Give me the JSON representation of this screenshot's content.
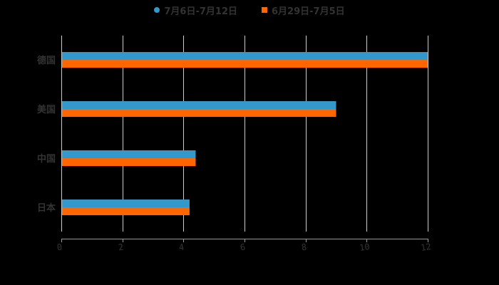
{
  "legend": {
    "series1": {
      "label": "7月6日-7月12日",
      "color": "#3399CC",
      "marker": "circle"
    },
    "series2": {
      "label": "6月29日-7月5日",
      "color": "#FF6600",
      "marker": "square"
    }
  },
  "chart_data": {
    "type": "bar",
    "orientation": "horizontal",
    "title": "",
    "xlabel": "",
    "ylabel": "",
    "categories": [
      "德国",
      "美国",
      "中国",
      "日本"
    ],
    "series": [
      {
        "name": "7月6日-7月12日",
        "color": "#3399CC",
        "values": [
          12,
          9,
          4.4,
          4.2
        ]
      },
      {
        "name": "6月29日-7月5日",
        "color": "#FF6600",
        "values": [
          12,
          9,
          4.4,
          4.2
        ]
      }
    ],
    "xlim": [
      0,
      12
    ],
    "xticks": [
      "0",
      "2",
      "4",
      "6",
      "8",
      "10",
      "12"
    ],
    "grid": "vertical",
    "legend_position": "top"
  }
}
